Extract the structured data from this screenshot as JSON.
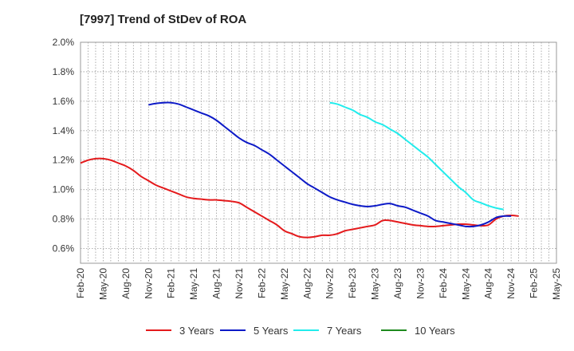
{
  "chart_data": {
    "type": "line",
    "title": "[7997]  Trend of StDev of ROA",
    "xlabel": "",
    "ylabel": "",
    "ylim": [
      0.5,
      2.0
    ],
    "yticks": [
      0.6,
      0.8,
      1.0,
      1.2,
      1.4,
      1.6,
      1.8,
      2.0
    ],
    "ytick_labels": [
      "0.6%",
      "0.8%",
      "1.0%",
      "1.2%",
      "1.4%",
      "1.6%",
      "1.8%",
      "2.0%"
    ],
    "x_months": [
      "Feb-20",
      "Mar-20",
      "Apr-20",
      "May-20",
      "Jun-20",
      "Jul-20",
      "Aug-20",
      "Sep-20",
      "Oct-20",
      "Nov-20",
      "Dec-20",
      "Jan-21",
      "Feb-21",
      "Mar-21",
      "Apr-21",
      "May-21",
      "Jun-21",
      "Jul-21",
      "Aug-21",
      "Sep-21",
      "Oct-21",
      "Nov-21",
      "Dec-21",
      "Jan-22",
      "Feb-22",
      "Mar-22",
      "Apr-22",
      "May-22",
      "Jun-22",
      "Jul-22",
      "Aug-22",
      "Sep-22",
      "Oct-22",
      "Nov-22",
      "Dec-22",
      "Jan-23",
      "Feb-23",
      "Mar-23",
      "Apr-23",
      "May-23",
      "Jun-23",
      "Jul-23",
      "Aug-23",
      "Sep-23",
      "Oct-23",
      "Nov-23",
      "Dec-23",
      "Jan-24",
      "Feb-24",
      "Mar-24",
      "Apr-24",
      "May-24",
      "Jun-24",
      "Jul-24",
      "Aug-24",
      "Sep-24",
      "Oct-24",
      "Nov-24",
      "Dec-24",
      "Jan-25",
      "Feb-25",
      "Mar-25",
      "Apr-25",
      "May-25"
    ],
    "x_tick_labels": [
      "Feb-20",
      "May-20",
      "Aug-20",
      "Nov-20",
      "Feb-21",
      "May-21",
      "Aug-21",
      "Nov-21",
      "Feb-22",
      "May-22",
      "Aug-22",
      "Nov-22",
      "Feb-23",
      "May-23",
      "Aug-23",
      "Nov-23",
      "Feb-24",
      "May-24",
      "Aug-24",
      "Nov-24",
      "Feb-25",
      "May-25"
    ],
    "grid": true,
    "legend_position": "bottom",
    "series": [
      {
        "name": "3 Years",
        "color": "#e41a1c",
        "start": "Feb-20",
        "values": [
          1.18,
          1.2,
          1.21,
          1.21,
          1.2,
          1.18,
          1.16,
          1.13,
          1.09,
          1.06,
          1.03,
          1.01,
          0.99,
          0.97,
          0.95,
          0.94,
          0.935,
          0.93,
          0.93,
          0.925,
          0.92,
          0.91,
          0.88,
          0.85,
          0.82,
          0.79,
          0.76,
          0.72,
          0.7,
          0.68,
          0.675,
          0.68,
          0.69,
          0.69,
          0.7,
          0.72,
          0.73,
          0.74,
          0.75,
          0.76,
          0.79,
          0.79,
          0.78,
          0.77,
          0.76,
          0.755,
          0.75,
          0.75,
          0.755,
          0.76,
          0.765,
          0.765,
          0.76,
          0.755,
          0.76,
          0.8,
          0.82,
          0.825,
          0.82
        ]
      },
      {
        "name": "5 Years",
        "color": "#0d1ac7",
        "start": "Nov-20",
        "values": [
          1.575,
          1.585,
          1.59,
          1.59,
          1.58,
          1.56,
          1.54,
          1.52,
          1.5,
          1.47,
          1.43,
          1.39,
          1.35,
          1.32,
          1.3,
          1.27,
          1.24,
          1.2,
          1.16,
          1.12,
          1.08,
          1.04,
          1.01,
          0.98,
          0.95,
          0.93,
          0.915,
          0.9,
          0.89,
          0.885,
          0.89,
          0.9,
          0.905,
          0.89,
          0.88,
          0.86,
          0.84,
          0.82,
          0.79,
          0.78,
          0.77,
          0.76,
          0.75,
          0.75,
          0.76,
          0.78,
          0.81,
          0.82,
          0.82
        ]
      },
      {
        "name": "7 Years",
        "color": "#22ecec",
        "start": "Nov-22",
        "values": [
          1.59,
          1.58,
          1.56,
          1.54,
          1.51,
          1.49,
          1.46,
          1.44,
          1.41,
          1.38,
          1.34,
          1.3,
          1.26,
          1.22,
          1.17,
          1.12,
          1.07,
          1.02,
          0.98,
          0.93,
          0.91,
          0.89,
          0.875,
          0.865
        ]
      },
      {
        "name": "10 Years",
        "color": "#1e8a1e",
        "start": "Feb-25",
        "values": []
      }
    ]
  }
}
